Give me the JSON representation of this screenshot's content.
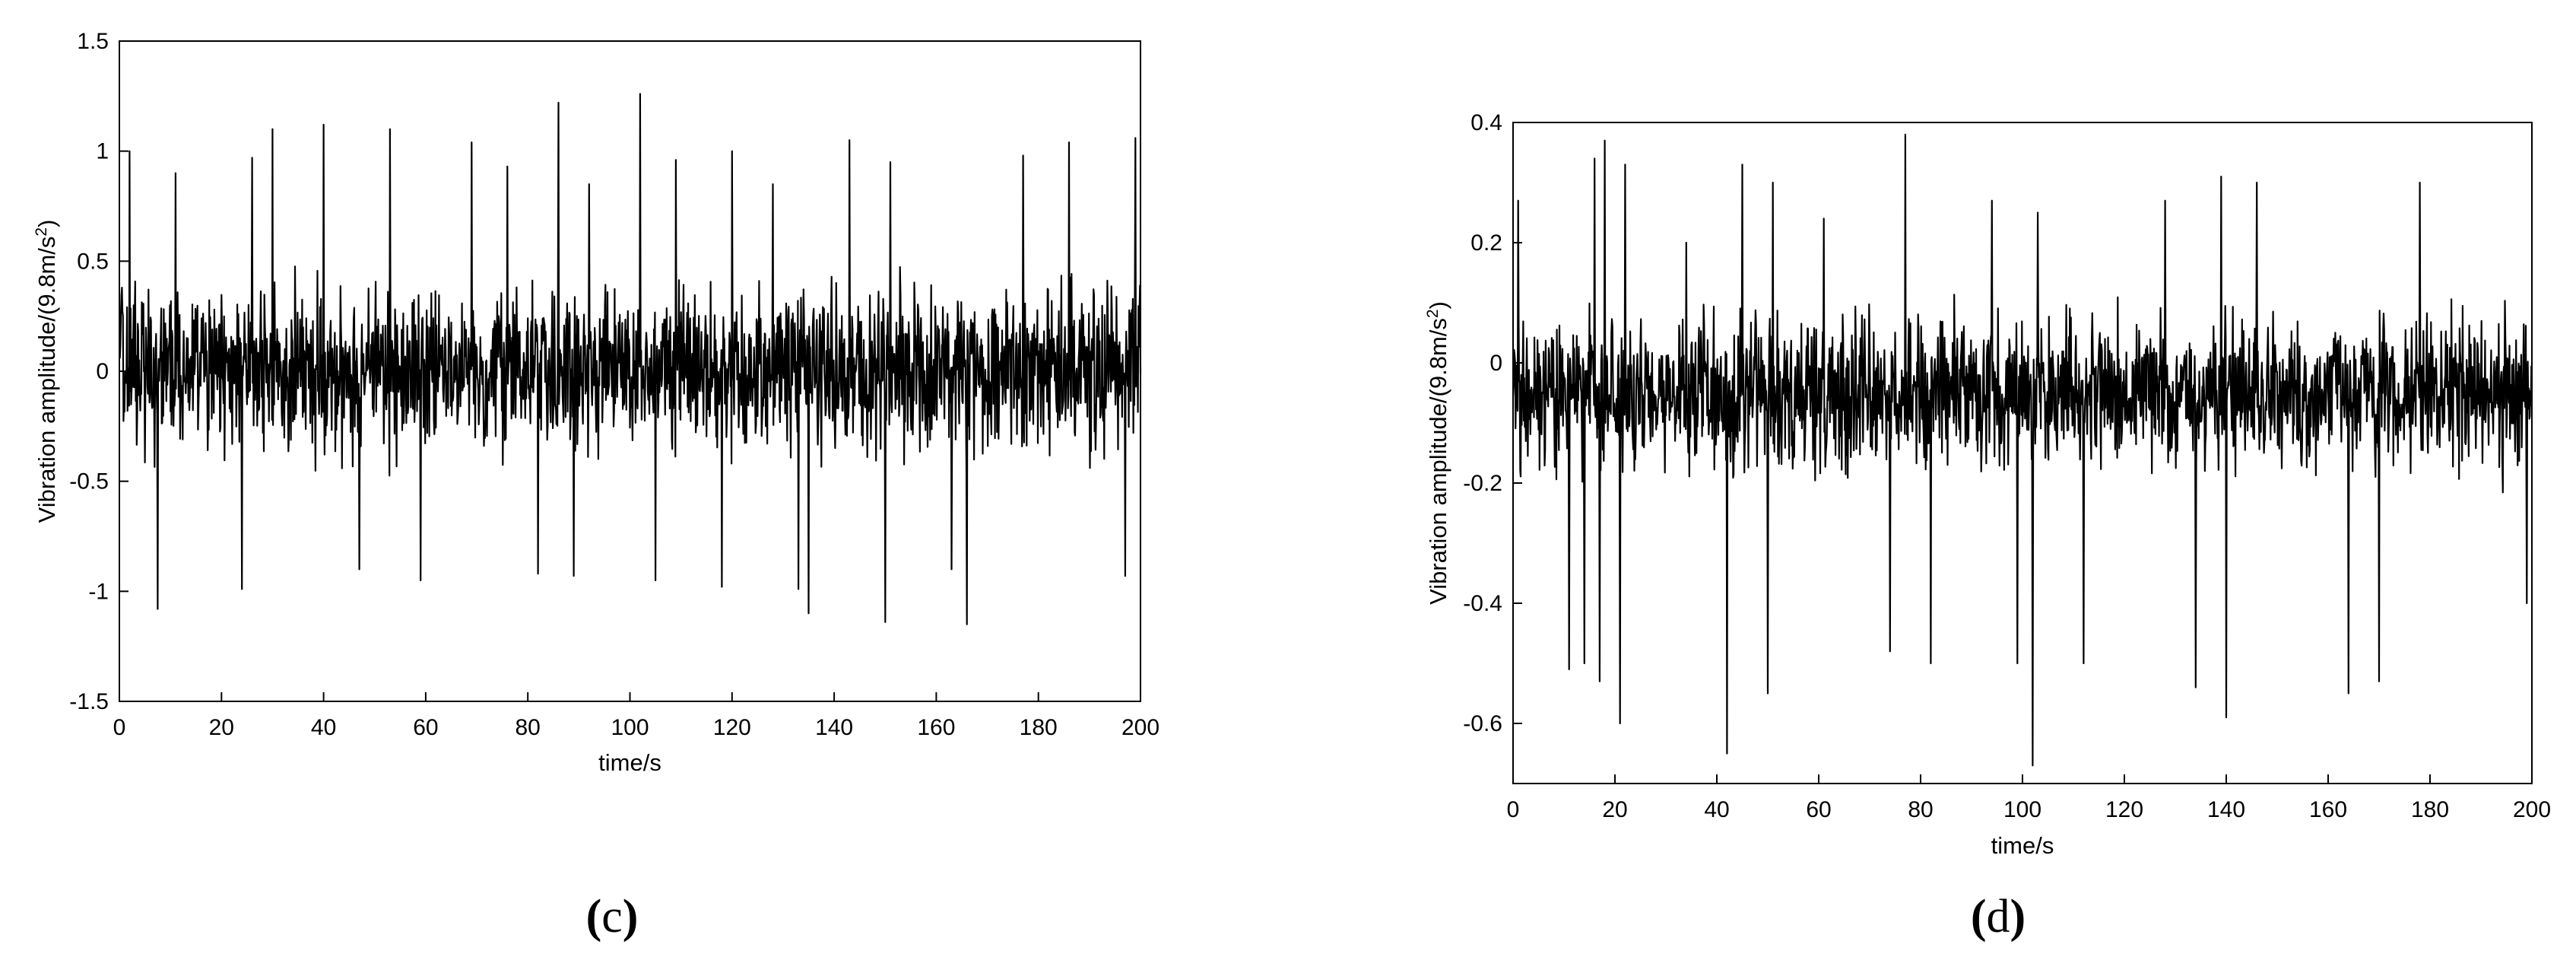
{
  "chart_data": [
    {
      "type": "line",
      "panel_label": {
        "open": "(",
        "letter": "c",
        "close": ")"
      },
      "xlabel": "time/s",
      "ylabel": {
        "text": "Vibration amplitude/(9.8m/s",
        "sup": "2",
        "close": ")"
      },
      "xlim": [
        0,
        200
      ],
      "ylim": [
        -1.5,
        1.5
      ],
      "xticks": [
        0,
        20,
        40,
        60,
        80,
        100,
        120,
        140,
        160,
        180,
        200
      ],
      "yticks": [
        -1.5,
        -1,
        -0.5,
        0,
        0.5,
        1,
        1.5
      ],
      "yticklabels": [
        "-1.5",
        "-1",
        "-0.5",
        "0",
        "0.5",
        "1",
        "1.5"
      ],
      "grid": false,
      "series": [
        {
          "color": "#000000",
          "sample_interval_s": 0.1,
          "typical_range": [
            -0.5,
            0.5
          ],
          "x": [
            0.5,
            2,
            7.5,
            11,
            24,
            26,
            30,
            40,
            47,
            53,
            59,
            69,
            76,
            82,
            86,
            89,
            92,
            102,
            105,
            109,
            118,
            120,
            128,
            133,
            135,
            143,
            150,
            151,
            163,
            166,
            177,
            186,
            197,
            199
          ],
          "y": [
            0.38,
            1.0,
            -1.08,
            0.9,
            -0.99,
            0.97,
            1.1,
            1.12,
            -0.9,
            1.1,
            -0.95,
            1.04,
            0.93,
            -0.92,
            1.22,
            -0.93,
            0.85,
            1.26,
            -0.95,
            0.96,
            -0.98,
            1.0,
            0.85,
            -0.99,
            -1.1,
            1.05,
            -1.14,
            0.95,
            -0.9,
            -1.15,
            0.98,
            1.04,
            -0.93,
            1.06
          ]
        }
      ]
    },
    {
      "type": "line",
      "panel_label": {
        "open": "(",
        "letter": "d",
        "close": ")"
      },
      "xlabel": "time/s",
      "ylabel": {
        "text": "Vibration amplitude/(9.8m/s",
        "sup": "2",
        "close": ")"
      },
      "xlim": [
        0,
        200
      ],
      "ylim": [
        -0.7,
        0.4
      ],
      "xticks": [
        0,
        20,
        40,
        60,
        80,
        100,
        120,
        140,
        160,
        180,
        200
      ],
      "yticks": [
        -0.6,
        -0.4,
        -0.2,
        0,
        0.2,
        0.4
      ],
      "yticklabels": [
        "-0.6",
        "-0.4",
        "-0.2",
        "0",
        "0.2",
        "0.4"
      ],
      "grid": false,
      "series": [
        {
          "color": "#000000",
          "sample_interval_s": 0.1,
          "typical_range": [
            -0.22,
            0.12
          ],
          "x": [
            1,
            11,
            14,
            16,
            17,
            18,
            21,
            22,
            34,
            42,
            45,
            50,
            51,
            61,
            74,
            77,
            82,
            94,
            99,
            102,
            103,
            112,
            128,
            134,
            139,
            140,
            146,
            164,
            170,
            178,
            199
          ],
          "y": [
            0.27,
            -0.51,
            -0.5,
            0.34,
            -0.53,
            0.37,
            -0.6,
            0.33,
            0.2,
            -0.65,
            0.33,
            -0.55,
            0.3,
            0.24,
            -0.48,
            0.38,
            -0.5,
            0.27,
            -0.5,
            -0.67,
            0.25,
            -0.5,
            0.27,
            -0.54,
            0.31,
            -0.59,
            0.3,
            -0.55,
            -0.53,
            0.3,
            -0.4
          ]
        }
      ]
    }
  ]
}
